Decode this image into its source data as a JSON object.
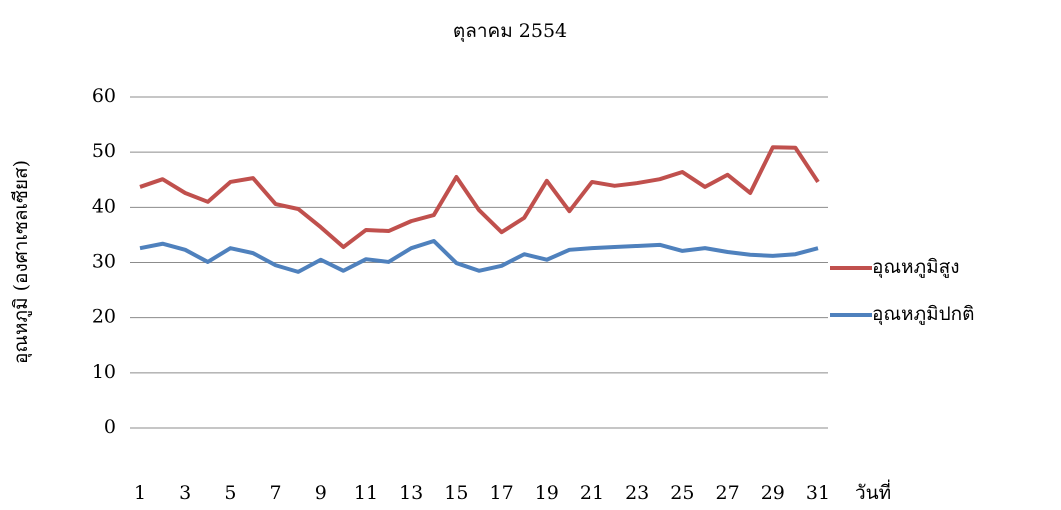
{
  "chart_data": {
    "type": "line",
    "title": "ตุลาคม 2554",
    "y_label": "อุณหภูมิ (องศาเซลเซียส)",
    "x_label": "วันที่",
    "categories": [
      "1",
      null,
      "3",
      null,
      "5",
      null,
      "7",
      null,
      "9",
      null,
      "11",
      null,
      "13",
      null,
      "15",
      null,
      "17",
      null,
      "19",
      null,
      "21",
      null,
      "23",
      null,
      "25",
      null,
      "27",
      null,
      "29",
      null,
      "31"
    ],
    "series": [
      {
        "name": "อุณหภูมิสูง",
        "color": "#c0504d",
        "values": [
          43.7,
          45.1,
          42.6,
          41,
          44.6,
          45.3,
          40.6,
          39.7,
          36.4,
          32.8,
          35.9,
          35.7,
          37.5,
          38.6,
          45.5,
          39.5,
          35.5,
          38.1,
          44.8,
          39.3,
          44.6,
          43.9,
          44.4,
          45.1,
          46.4,
          43.7,
          45.9,
          42.6,
          50.9,
          50.8,
          44.6
        ]
      },
      {
        "name": "อุณหภูมิปกติ",
        "color": "#4f81bd",
        "values": [
          32.6,
          33.4,
          32.3,
          30.1,
          32.6,
          31.7,
          29.5,
          28.3,
          30.5,
          28.5,
          30.6,
          30.1,
          32.6,
          33.9,
          29.9,
          28.5,
          29.4,
          31.5,
          30.5,
          32.3,
          32.6,
          32.8,
          33.0,
          33.2,
          32.1,
          32.6,
          31.9,
          31.4,
          31.2,
          31.5,
          32.6
        ]
      }
    ],
    "ylim": [
      0,
      60
    ],
    "yticks": [
      0,
      10,
      20,
      30,
      40,
      50,
      60
    ],
    "grid": true,
    "legend": "right"
  }
}
